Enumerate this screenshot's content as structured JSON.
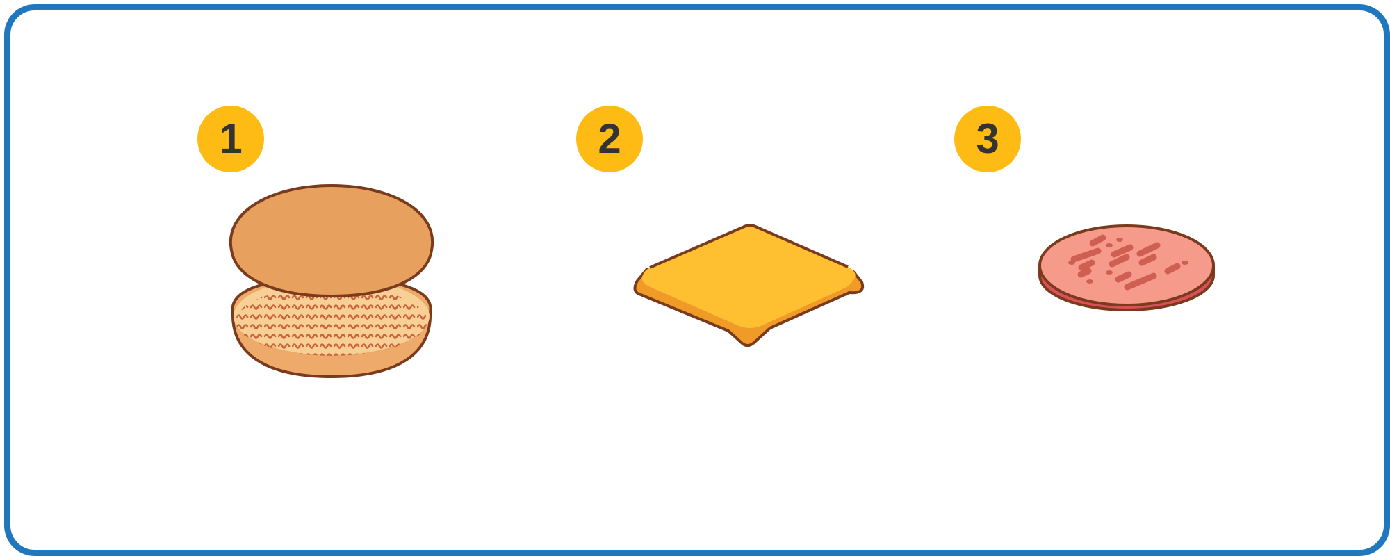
{
  "steps": [
    {
      "number": "1",
      "item": "bun-icon"
    },
    {
      "number": "2",
      "item": "cheese-slice-icon"
    },
    {
      "number": "3",
      "item": "salami-slice-icon"
    }
  ],
  "colors": {
    "frame_border": "#1f77bd",
    "badge_fill": "#fdbb13",
    "badge_text": "#333333",
    "outline": "#7a3a1c",
    "bun_top": "#e8a05f",
    "bun_bottom_side": "#eeaa6a",
    "bun_crumb": "#f8cf94",
    "bun_texture": "#c9623f",
    "cheese_top": "#fec031",
    "cheese_side": "#f09a28",
    "salami_top": "#f69a8c",
    "salami_side": "#d9505a",
    "salami_fat": "#cf5f52"
  }
}
